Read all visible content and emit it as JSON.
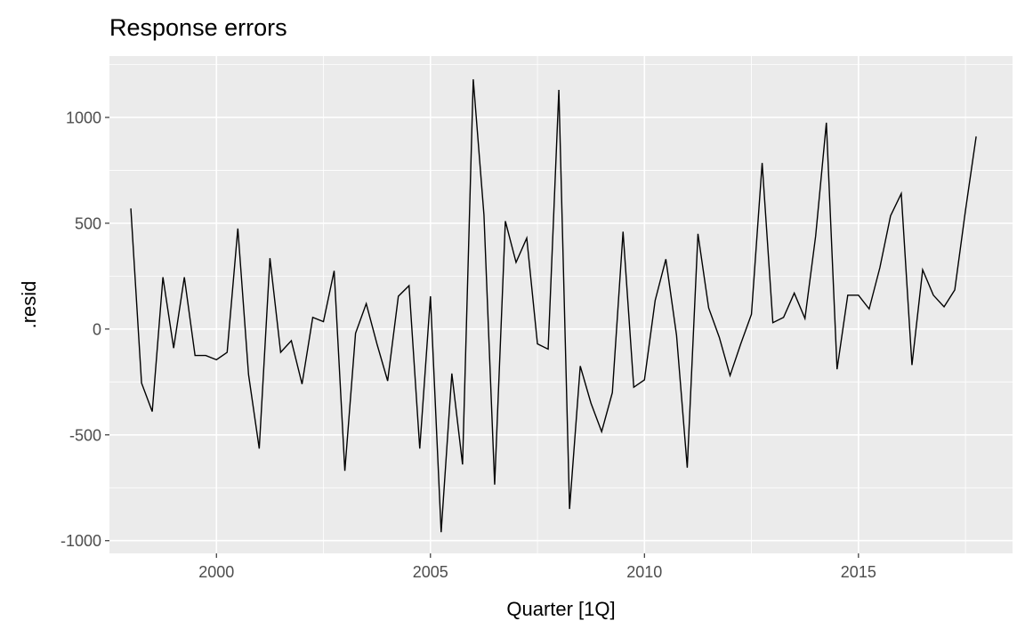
{
  "chart_data": {
    "type": "line",
    "title": "Response errors",
    "xlabel": "Quarter [1Q]",
    "ylabel": ".resid",
    "xlim": [
      1997.5,
      2018.6
    ],
    "ylim": [
      -1060,
      1290
    ],
    "x_ticks": [
      2000,
      2005,
      2010,
      2015
    ],
    "x_tick_labels": [
      "2000",
      "2005",
      "2010",
      "2015"
    ],
    "y_ticks": [
      -1000,
      -500,
      0,
      500,
      1000
    ],
    "y_tick_labels": [
      "-1000",
      "-500",
      "0",
      "500",
      "1000"
    ],
    "grid": true,
    "legend": "none",
    "colors": {
      "panel": "#ebebeb",
      "grid": "#ffffff",
      "line": "#000000"
    },
    "series": [
      {
        "x": [
          "1998 Q1",
          "1998 Q2",
          "1998 Q3",
          "1998 Q4",
          "1999 Q1",
          "1999 Q2",
          "1999 Q3",
          "1999 Q4",
          "2000 Q1",
          "2000 Q2",
          "2000 Q3",
          "2000 Q4",
          "2001 Q1",
          "2001 Q2",
          "2001 Q3",
          "2001 Q4",
          "2002 Q1",
          "2002 Q2",
          "2002 Q3",
          "2002 Q4",
          "2003 Q1",
          "2003 Q2",
          "2003 Q3",
          "2003 Q4",
          "2004 Q1",
          "2004 Q2",
          "2004 Q3",
          "2004 Q4",
          "2005 Q1",
          "2005 Q2",
          "2005 Q3",
          "2005 Q4",
          "2006 Q1",
          "2006 Q2",
          "2006 Q3",
          "2006 Q4",
          "2007 Q1",
          "2007 Q2",
          "2007 Q3",
          "2007 Q4",
          "2008 Q1",
          "2008 Q2",
          "2008 Q3",
          "2008 Q4",
          "2009 Q1",
          "2009 Q2",
          "2009 Q3",
          "2009 Q4",
          "2010 Q1",
          "2010 Q2",
          "2010 Q3",
          "2010 Q4",
          "2011 Q1",
          "2011 Q2",
          "2011 Q3",
          "2011 Q4",
          "2012 Q1",
          "2012 Q2",
          "2012 Q3",
          "2012 Q4",
          "2013 Q1",
          "2013 Q2",
          "2013 Q3",
          "2013 Q4",
          "2014 Q1",
          "2014 Q2",
          "2014 Q3",
          "2014 Q4",
          "2015 Q1",
          "2015 Q2",
          "2015 Q3",
          "2015 Q4",
          "2016 Q1",
          "2016 Q2",
          "2016 Q3",
          "2016 Q4",
          "2017 Q1",
          "2017 Q2",
          "2017 Q3",
          "2017 Q4"
        ],
        "values": [
          570,
          -255,
          -390,
          245,
          -90,
          245,
          -125,
          -125,
          -145,
          -110,
          475,
          -215,
          -565,
          335,
          -110,
          -55,
          -260,
          55,
          35,
          275,
          -670,
          -20,
          120,
          -70,
          -245,
          155,
          205,
          -565,
          155,
          -960,
          -210,
          -640,
          1180,
          540,
          -735,
          510,
          315,
          430,
          -70,
          -95,
          1130,
          -850,
          -175,
          -350,
          -485,
          -300,
          460,
          -275,
          -240,
          135,
          330,
          -30,
          -655,
          450,
          100,
          -40,
          -220,
          -70,
          70,
          785,
          30,
          55,
          170,
          50,
          440,
          975,
          -190,
          160,
          160,
          95,
          290,
          535,
          640,
          -170,
          280,
          160,
          105,
          185,
          560,
          910
        ]
      }
    ]
  }
}
